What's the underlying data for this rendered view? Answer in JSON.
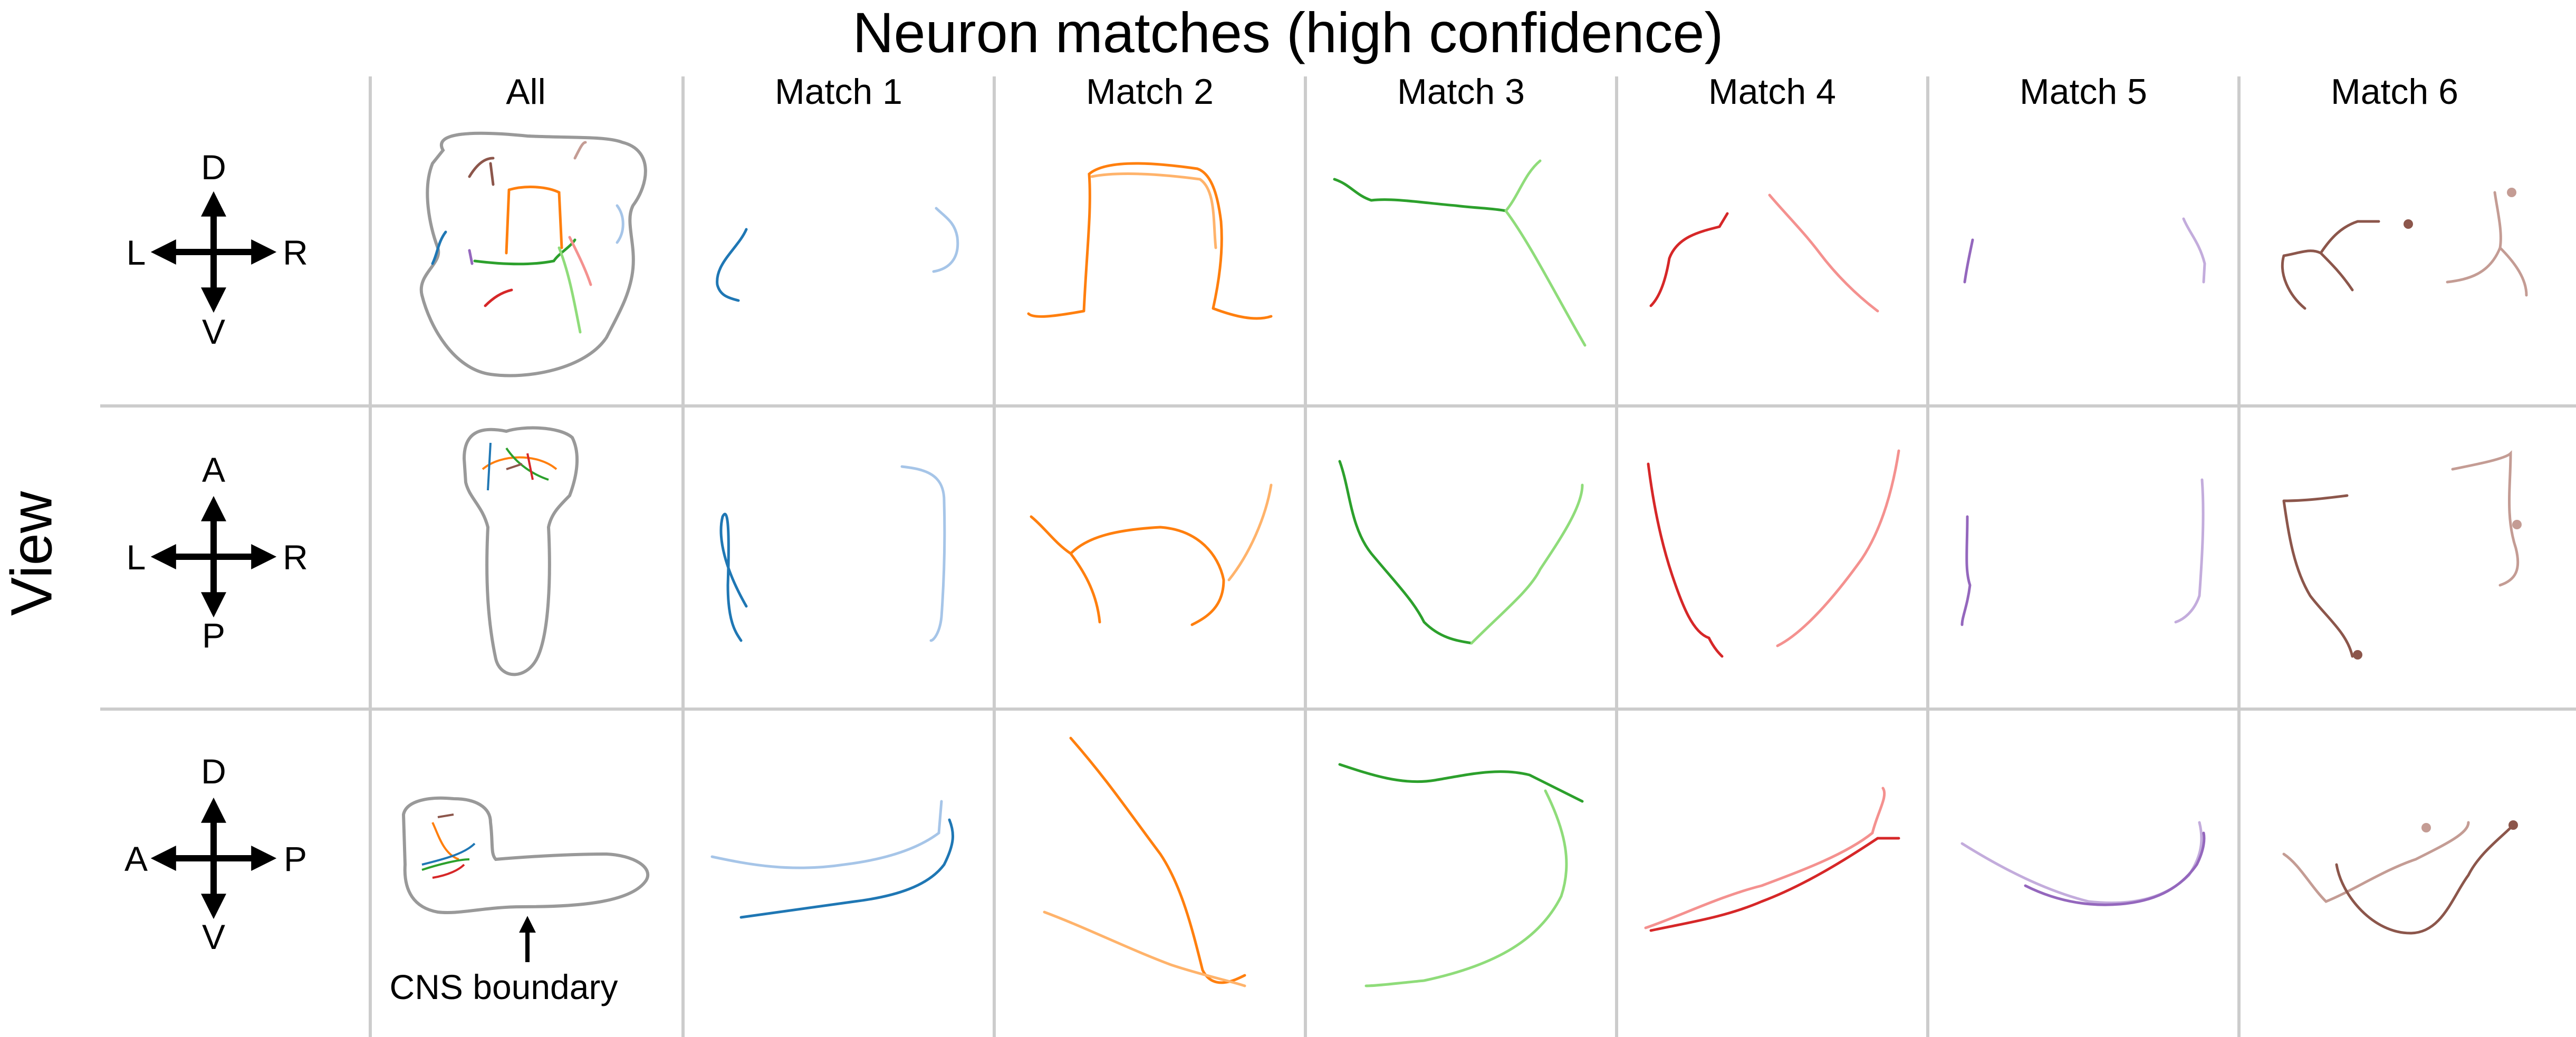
{
  "title": "Neuron matches (high confidence)",
  "columns": [
    "All",
    "Match 1",
    "Match 2",
    "Match 3",
    "Match 4",
    "Match 5",
    "Match 6"
  ],
  "row_axis_label": "View",
  "views": [
    {
      "name": "dorsal-ventral front",
      "up": "D",
      "down": "V",
      "left": "L",
      "right": "R"
    },
    {
      "name": "anterior-posterior top",
      "up": "A",
      "down": "P",
      "left": "L",
      "right": "R"
    },
    {
      "name": "lateral side",
      "up": "D",
      "down": "V",
      "left": "A",
      "right": "P"
    }
  ],
  "annotation": "CNS boundary",
  "colors": {
    "grid": "#cccccc",
    "cns": "#999999",
    "match1": [
      "#1f77b4",
      "#a6c5e8"
    ],
    "match2": [
      "#ff7f0e",
      "#ffb36b"
    ],
    "match3": [
      "#2ca02c",
      "#8fdc7a"
    ],
    "match4": [
      "#d62728",
      "#f4918f"
    ],
    "match5": [
      "#9467bd",
      "#c3acdc"
    ],
    "match6": [
      "#8c564b",
      "#c49c94"
    ]
  }
}
